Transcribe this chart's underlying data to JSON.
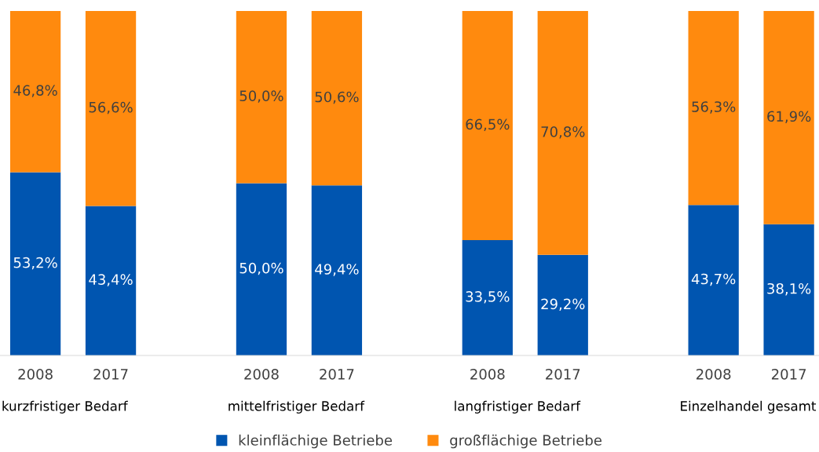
{
  "chart_data": {
    "type": "bar",
    "stacked": true,
    "categories": [
      "2008",
      "2017",
      null,
      "2008",
      "2017",
      null,
      "2008",
      "2017",
      null,
      "2008",
      "2017"
    ],
    "series": [
      {
        "name": "kleinflächige Betriebe",
        "color": "#0055b0",
        "values": [
          53.2,
          43.4,
          null,
          50.0,
          49.4,
          null,
          33.5,
          29.2,
          null,
          43.7,
          38.1
        ],
        "value_labels": [
          "53,2%",
          "43,4%",
          null,
          "50,0%",
          "49,4%",
          null,
          "33,5%",
          "29,2%",
          null,
          "43,7%",
          "38,1%"
        ]
      },
      {
        "name": "großflächige Betriebe",
        "color": "#ff8a0e",
        "values": [
          46.8,
          56.6,
          null,
          50.0,
          50.6,
          null,
          66.5,
          70.8,
          null,
          56.3,
          61.9
        ],
        "value_labels": [
          "46,8%",
          "56,6%",
          null,
          "50,0%",
          "50,6%",
          null,
          "66,5%",
          "70,8%",
          null,
          "56,3%",
          "61,9%"
        ]
      }
    ],
    "annotations": [
      "kurzfristiger Bedarf",
      "mittelfristiger Bedarf",
      "langfristiger Bedarf",
      "Einzelhandel gesamt"
    ],
    "legend": "bottom",
    "grid": false
  }
}
